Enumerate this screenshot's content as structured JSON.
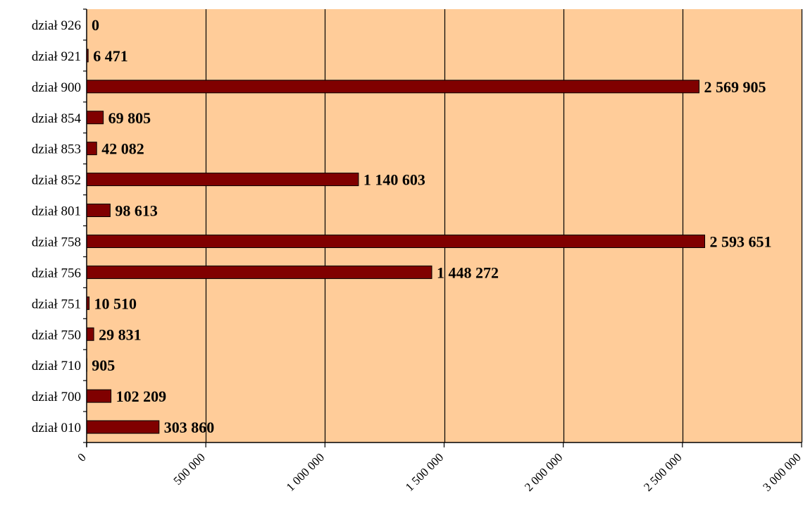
{
  "colors": {
    "plot_background": "#FFCC99",
    "bar_fill": "#800000",
    "bar_stroke": "#000000",
    "gridline": "#000000"
  },
  "chart_data": {
    "type": "bar",
    "orientation": "horizontal",
    "categories": [
      "dział 926",
      "dział 921",
      "dział 900",
      "dział 854",
      "dział 853",
      "dział 852",
      "dział 801",
      "dział 758",
      "dział 756",
      "dział 751",
      "dział 750",
      "dział 710",
      "dział 700",
      "dział 010"
    ],
    "values": [
      0,
      6471,
      2569905,
      69805,
      42082,
      1140603,
      98613,
      2593651,
      1448272,
      10510,
      29831,
      905,
      102209,
      303860
    ],
    "value_labels": [
      "0",
      "6 471",
      "2 569 905",
      "69 805",
      "42 082",
      "1 140 603",
      "98 613",
      "2 593 651",
      "1 448 272",
      "10 510",
      "29 831",
      "905",
      "102 209",
      "303 860"
    ],
    "xlim": [
      0,
      3000000
    ],
    "x_ticks": [
      0,
      500000,
      1000000,
      1500000,
      2000000,
      2500000,
      3000000
    ],
    "x_tick_labels": [
      "0",
      "500 000",
      "1 000 000",
      "1 500 000",
      "2 000 000",
      "2 500 000",
      "3 000 000"
    ],
    "grid": "vertical",
    "legend": "none"
  }
}
